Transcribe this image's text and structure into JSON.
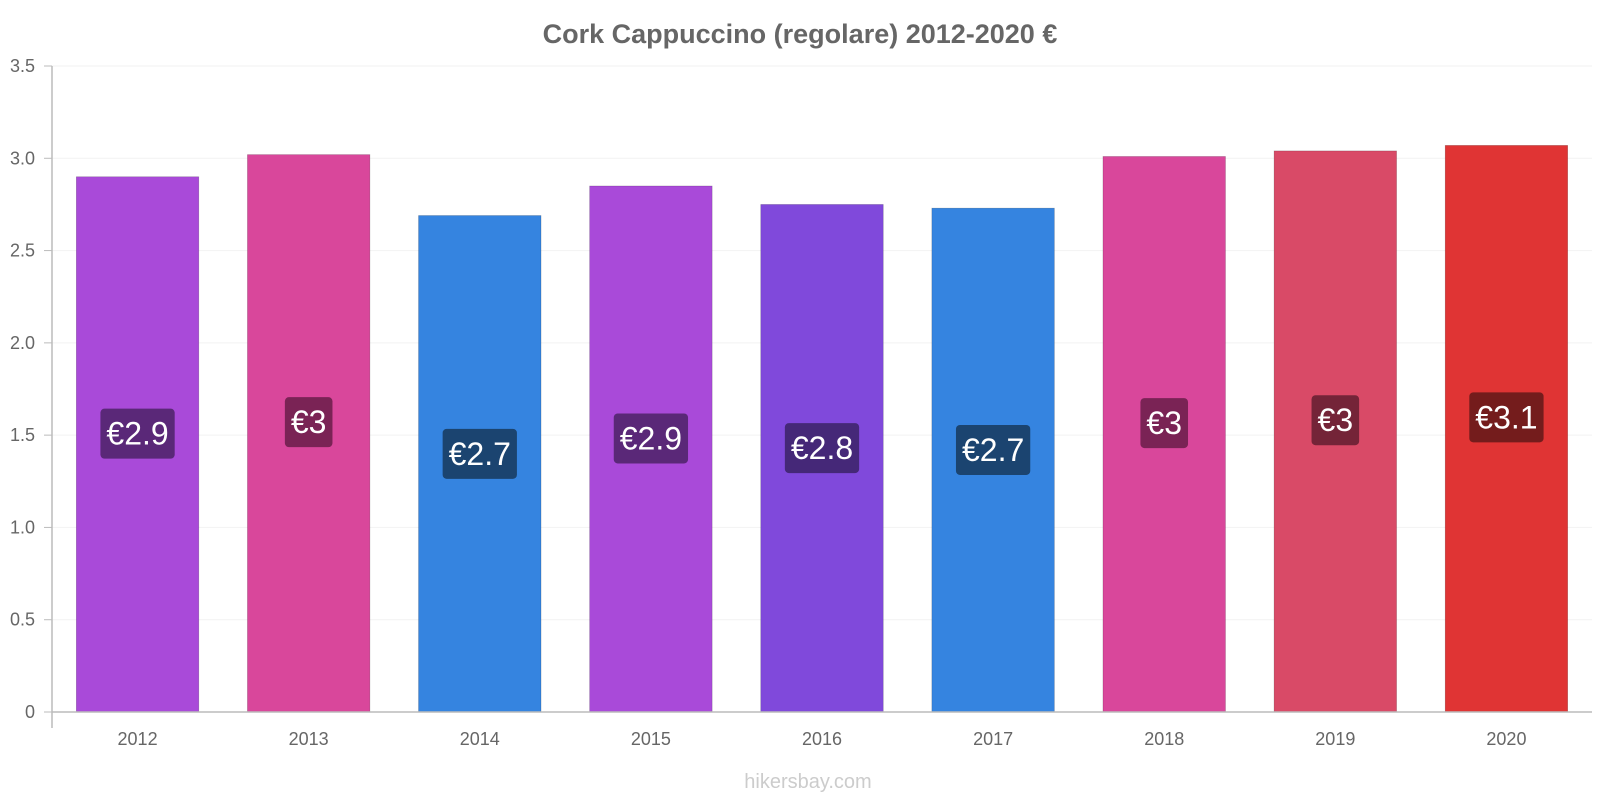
{
  "chart_data": {
    "type": "bar",
    "title": "Cork Cappuccino (regolare) 2012-2020 €",
    "xlabel": "",
    "ylabel": "",
    "categories": [
      "2012",
      "2013",
      "2014",
      "2015",
      "2016",
      "2017",
      "2018",
      "2019",
      "2020"
    ],
    "values": [
      2.9,
      3.02,
      2.69,
      2.85,
      2.75,
      2.73,
      3.01,
      3.04,
      3.07
    ],
    "data_labels": [
      "€2.9",
      "€3",
      "€2.7",
      "€2.9",
      "€2.8",
      "€2.7",
      "€3",
      "€3",
      "€3.1"
    ],
    "bar_colors": [
      "#a94ad9",
      "#d9479b",
      "#3584e0",
      "#a94ad9",
      "#8049db",
      "#3584e0",
      "#d9479b",
      "#d94a67",
      "#e03434"
    ],
    "label_colors": [
      "#5a2878",
      "#7a2355",
      "#1b4470",
      "#5a2878",
      "#452878",
      "#1b4470",
      "#7a2355",
      "#742438",
      "#741c1c"
    ],
    "ylim": [
      0,
      3.5
    ],
    "yticks": [
      "0",
      "0.5",
      "1.0",
      "1.5",
      "2.0",
      "2.5",
      "3.0",
      "3.5"
    ],
    "grid": true
  },
  "watermark": "hikersbay.com"
}
